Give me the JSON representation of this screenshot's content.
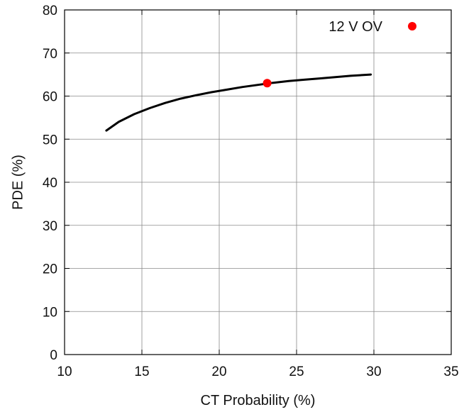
{
  "chart_data": {
    "type": "line",
    "title": "",
    "xlabel": "CT Probability (%)",
    "ylabel": "PDE (%)",
    "xlim": [
      10,
      35
    ],
    "ylim": [
      0,
      80
    ],
    "xticks": [
      10,
      15,
      20,
      25,
      30,
      35
    ],
    "yticks": [
      0,
      10,
      20,
      30,
      40,
      50,
      60,
      70,
      80
    ],
    "grid": true,
    "legend_position": "top-right",
    "series": [
      {
        "type": "line",
        "color": "#000000",
        "x": [
          12.7,
          13.5,
          14.5,
          15.5,
          16.5,
          17.5,
          18.5,
          19.5,
          20.5,
          21.5,
          22.5,
          23.5,
          24.5,
          25.5,
          26.5,
          27.5,
          28.5,
          29.8
        ],
        "y": [
          52.0,
          54.0,
          55.8,
          57.2,
          58.4,
          59.4,
          60.2,
          60.9,
          61.5,
          62.1,
          62.6,
          63.1,
          63.5,
          63.8,
          64.1,
          64.4,
          64.7,
          65.0
        ]
      },
      {
        "name": "12 V OV",
        "type": "scatter",
        "color": "#ff0000",
        "x": [
          23.1
        ],
        "y": [
          63.0
        ]
      }
    ]
  }
}
